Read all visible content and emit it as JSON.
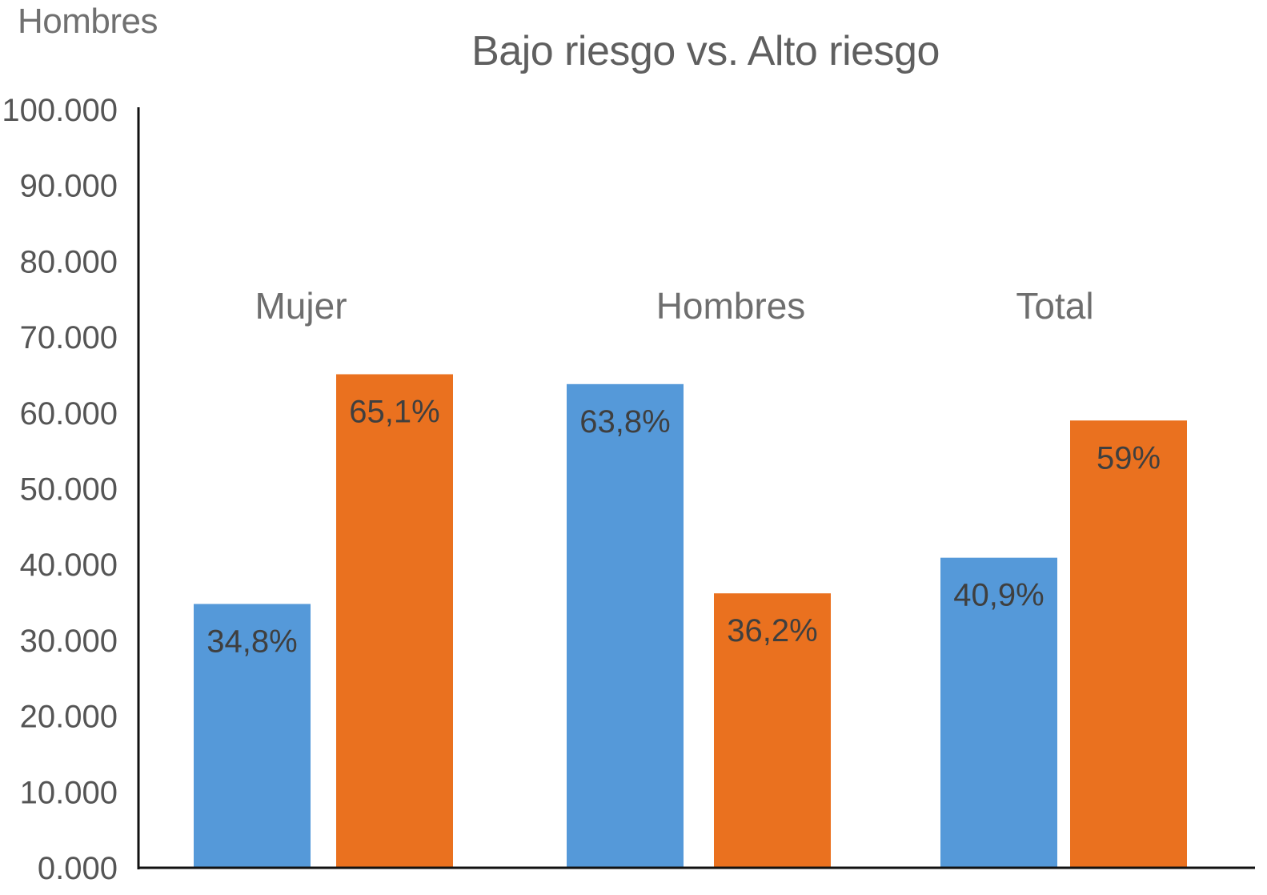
{
  "header": {
    "corner_label": "Hombres",
    "title": "Bajo riesgo vs. Alto riesgo"
  },
  "colors": {
    "series_blue": "#5599d9",
    "series_orange": "#ea711f",
    "axis": "#111111",
    "text": "#555555"
  },
  "chart_data": {
    "type": "bar",
    "title": "Bajo riesgo vs. Alto riesgo",
    "xlabel": "",
    "ylabel": "",
    "ylim": [
      0,
      100000
    ],
    "yticks": [
      0,
      10000,
      20000,
      30000,
      40000,
      50000,
      60000,
      70000,
      80000,
      90000,
      100000
    ],
    "ytick_labels": [
      "0.000",
      "10.000",
      "20.000",
      "30.000",
      "40.000",
      "50.000",
      "60.000",
      "70.000",
      "80.000",
      "90.000",
      "100.000"
    ],
    "grid": false,
    "legend": "none",
    "categories": [
      "Mujer",
      "Hombres",
      "Total"
    ],
    "series": [
      {
        "color": "#5599d9",
        "values": [
          34800,
          63800,
          40900
        ],
        "labels": [
          "34,8%",
          "63,8%",
          "40,9%"
        ]
      },
      {
        "color": "#ea711f",
        "values": [
          65100,
          36200,
          59000
        ],
        "labels": [
          "65,1%",
          "36,2%",
          "59%"
        ]
      }
    ]
  }
}
